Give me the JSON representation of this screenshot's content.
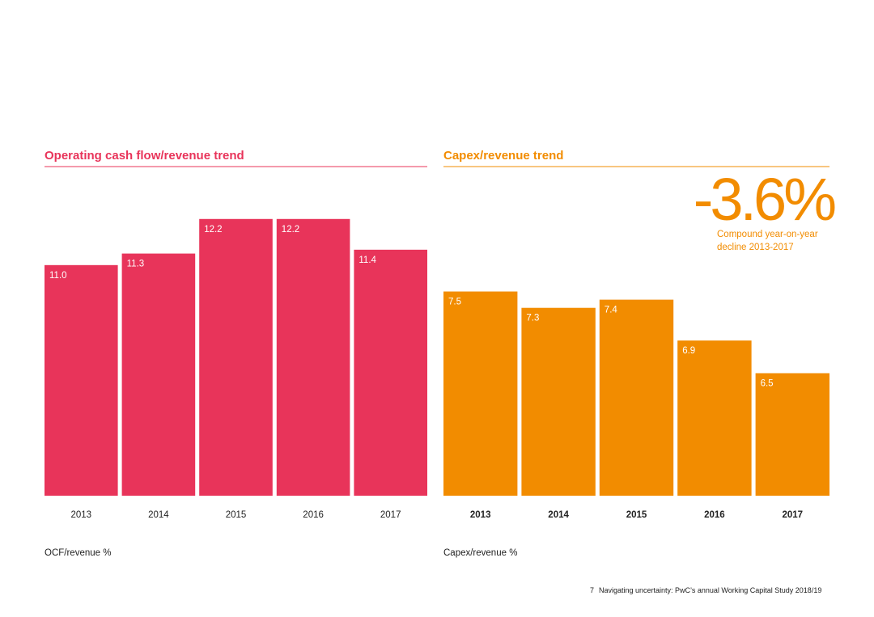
{
  "chart_data": [
    {
      "type": "bar",
      "title": "Operating cash flow/revenue trend",
      "categories": [
        "2013",
        "2014",
        "2015",
        "2016",
        "2017"
      ],
      "values": [
        11.0,
        11.3,
        12.2,
        12.2,
        11.4
      ],
      "value_labels": [
        "11.0",
        "11.3",
        "12.2",
        "12.2",
        "11.4"
      ],
      "color": "#e8345a",
      "ylim": [
        5,
        13.5
      ],
      "y_label": "OCF/revenue %"
    },
    {
      "type": "bar",
      "title": "Capex/revenue trend",
      "categories": [
        "2013",
        "2014",
        "2015",
        "2016",
        "2017"
      ],
      "values": [
        7.5,
        7.3,
        7.4,
        6.9,
        6.5
      ],
      "value_labels": [
        "7.5",
        "7.3",
        "7.4",
        "6.9",
        "6.5"
      ],
      "color": "#f28c00",
      "ylim": [
        5,
        9
      ],
      "y_label": "Capex/revenue %",
      "annotation": {
        "headline": "-3.6%",
        "lines": [
          "Compound year-on-year",
          "decline 2013-2017"
        ]
      }
    }
  ],
  "footer": {
    "page": "7",
    "text": "Navigating uncertainty: PwC’s annual Working Capital Study 2018/19"
  }
}
